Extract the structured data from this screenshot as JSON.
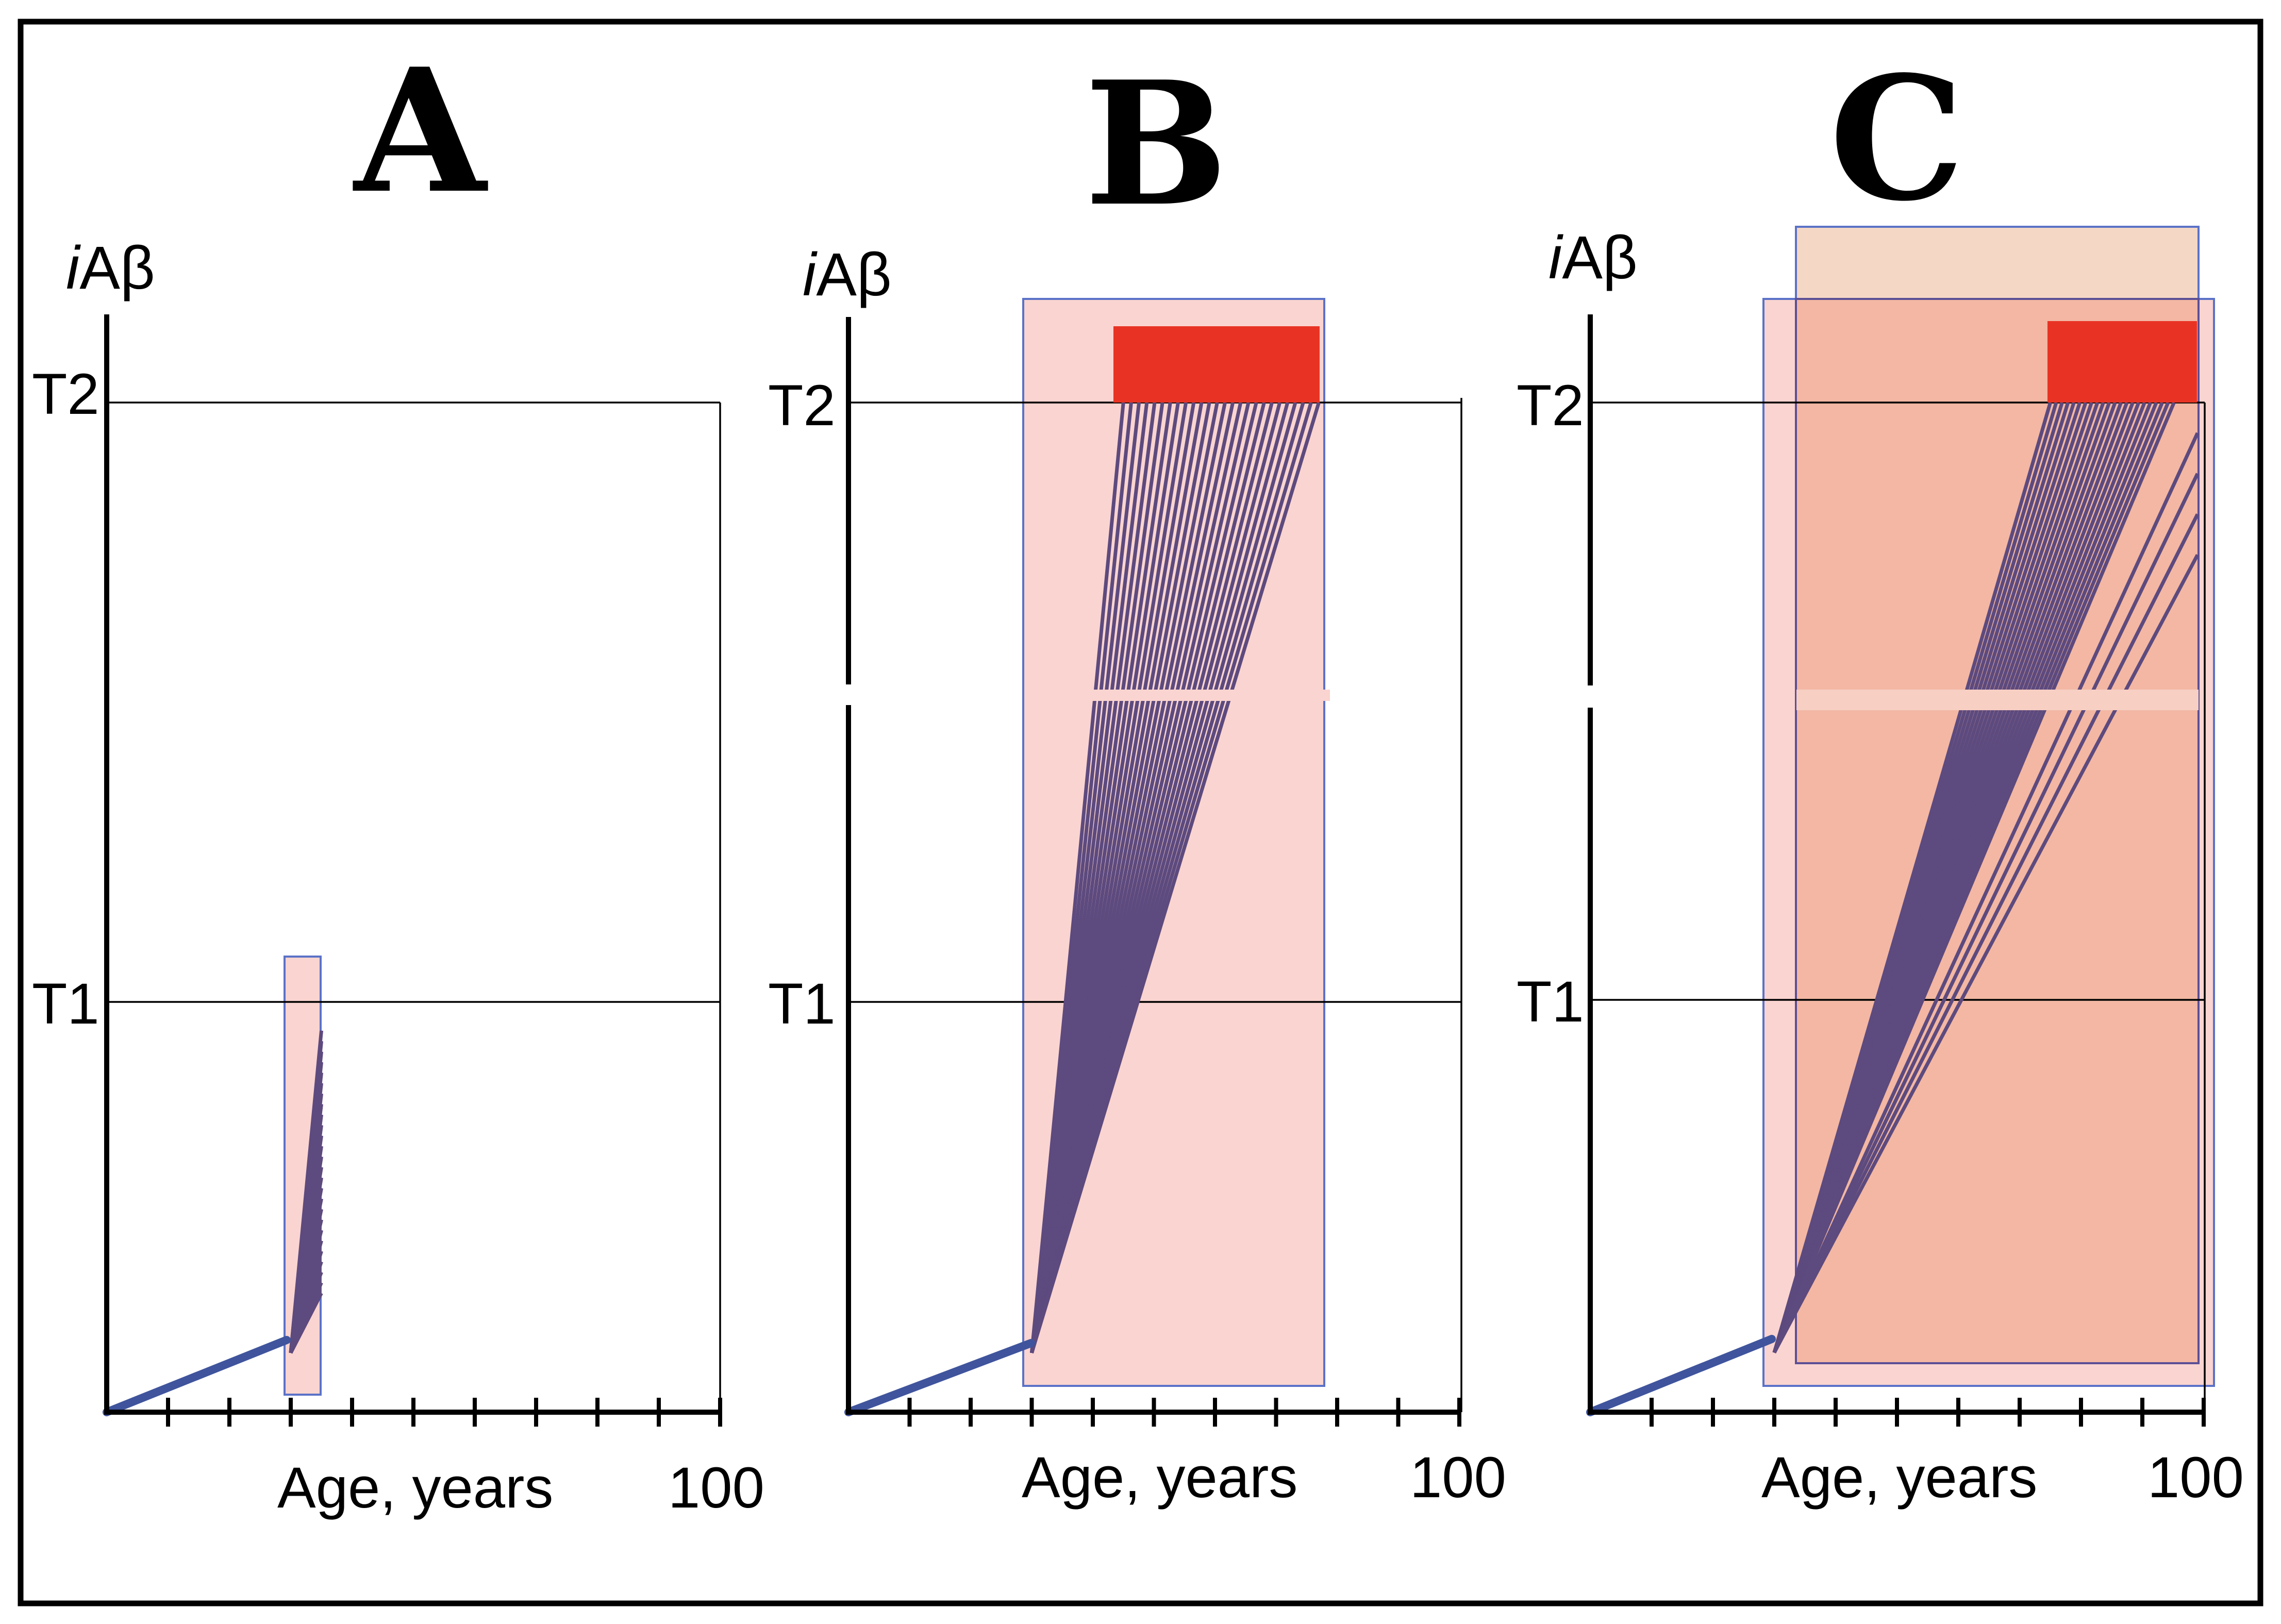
{
  "figure": {
    "panels": [
      {
        "id": "A",
        "letter": "A",
        "y_axis_title_italic": "i",
        "y_axis_title_rest": "Aβ",
        "threshold_labels": [
          "T2",
          "T1"
        ],
        "x_axis_label": "Age, years",
        "x_axis_max_label": "100",
        "x_max": 100,
        "tick_count": 10,
        "has_axis_break": false,
        "fan_start_age": 30,
        "fan_end_age": 35,
        "fan_end_level_min": 0.29,
        "fan_end_level_max": 0.93,
        "shaded_region_color": "#fad4d0",
        "fan_color": "#5d4a7e",
        "baseline_color": "#3f549c"
      },
      {
        "id": "B",
        "letter": "B",
        "y_axis_title_italic": "i",
        "y_axis_title_rest": "Aβ",
        "threshold_labels": [
          "T2",
          "T1"
        ],
        "x_axis_label": "Age, years",
        "x_axis_max_label": "100",
        "x_max": 100,
        "tick_count": 10,
        "has_axis_break": true,
        "fan_start_age": 30,
        "fan_end_age_min": 45,
        "fan_end_age_max": 77,
        "fan_end_level": 2.0,
        "shaded_region_color": "#fad4d0",
        "red_zone_color": "#e83324",
        "fan_color": "#5d4a7e",
        "baseline_color": "#3f549c"
      },
      {
        "id": "C",
        "letter": "C",
        "y_axis_title_italic": "i",
        "y_axis_title_rest": "Aβ",
        "threshold_labels": [
          "T2",
          "T1"
        ],
        "x_axis_label": "Age, years",
        "x_axis_max_label": "100",
        "x_max": 100,
        "tick_count": 10,
        "has_axis_break": true,
        "fan_start_age": 30,
        "fan_end_age_min": 75,
        "fan_end_age_max": 99,
        "fan_end_level": 2.0,
        "shaded_region_color": "#fad4d0",
        "overlay_region_color": "#f3b7a3",
        "upper_overlay_color": "#f5d7c5",
        "red_zone_color": "#e83324",
        "fan_color": "#5d4a7e",
        "baseline_color": "#3f549c"
      }
    ]
  }
}
